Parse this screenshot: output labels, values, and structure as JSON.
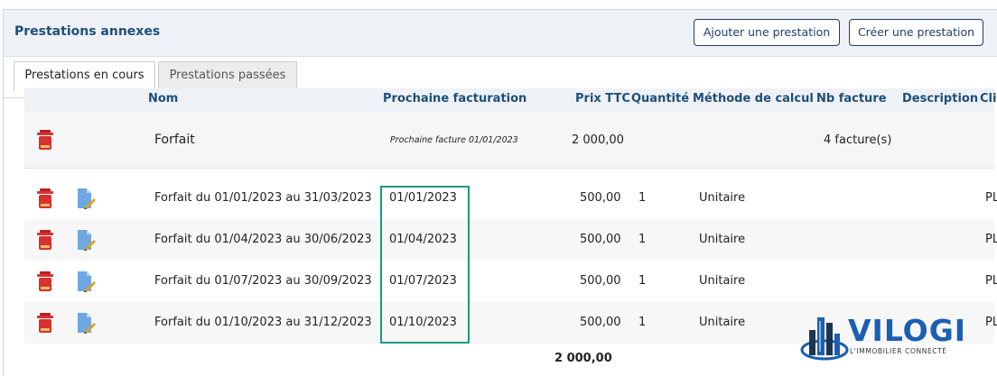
{
  "header": {
    "title": "Prestations annexes",
    "add_button": "Ajouter une prestation",
    "create_button": "Créer une prestation"
  },
  "tabs": [
    {
      "label": "Prestations en cours",
      "active": true
    },
    {
      "label": "Prestations passées",
      "active": false
    }
  ],
  "table": {
    "columns": {
      "nom": "Nom",
      "prochaine": "Prochaine facturation",
      "prix": "Prix TTC",
      "quantite": "Quantité",
      "methode": "Méthode de calcul",
      "nb_facture": "Nb facture",
      "description": "Description",
      "client": "Cli"
    },
    "group": {
      "nom": "Forfait",
      "prochaine": "Prochaine facture 01/01/2023",
      "prix": "2 000,00",
      "nb_facture": "4 facture(s)"
    },
    "rows": [
      {
        "nom": "Forfait du 01/01/2023 au 31/03/2023",
        "prochaine": "01/01/2023",
        "prix": "500,00",
        "quantite": "1",
        "methode": "Unitaire",
        "client": "PL"
      },
      {
        "nom": "Forfait du 01/04/2023 au 30/06/2023",
        "prochaine": "01/04/2023",
        "prix": "500,00",
        "quantite": "1",
        "methode": "Unitaire",
        "client": "PL"
      },
      {
        "nom": "Forfait du 01/07/2023 au 30/09/2023",
        "prochaine": "01/07/2023",
        "prix": "500,00",
        "quantite": "1",
        "methode": "Unitaire",
        "client": "PL"
      },
      {
        "nom": "Forfait du 01/10/2023 au 31/12/2023",
        "prochaine": "01/10/2023",
        "prix": "500,00",
        "quantite": "1",
        "methode": "Unitaire",
        "client": "PL"
      }
    ],
    "total": "2 000,00"
  },
  "logo": {
    "name": "VILOGI",
    "tagline": "L'IMMOBILIER CONNECTÉ"
  },
  "colors": {
    "title": "#1f4e79",
    "highlight": "#1a9a80",
    "trash": "#d93030",
    "logo": "#1b5fb5"
  },
  "icons": {
    "delete": "trash-icon",
    "edit": "edit-document-icon"
  }
}
